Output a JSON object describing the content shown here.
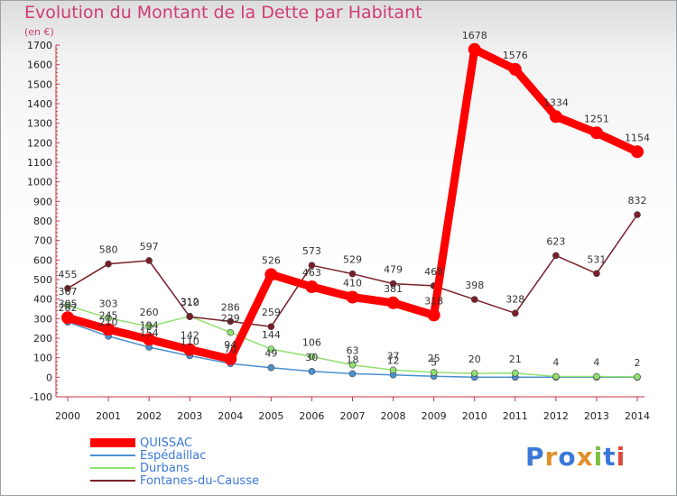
{
  "title": "Evolution du Montant de la Dette par Habitant",
  "unit": "(en €)",
  "logo": "Proxiti",
  "chart_data": {
    "type": "line",
    "title": "Evolution du Montant de la Dette par Habitant",
    "ylabel": "(en €)",
    "xlabel": "",
    "ylim": [
      -100,
      1700
    ],
    "yticks": [
      -100,
      0,
      100,
      200,
      300,
      400,
      500,
      600,
      700,
      800,
      900,
      1000,
      1100,
      1200,
      1300,
      1400,
      1500,
      1600,
      1700
    ],
    "x": [
      "2000",
      "2001",
      "2002",
      "2003",
      "2004",
      "2005",
      "2006",
      "2007",
      "2008",
      "2009",
      "2010",
      "2011",
      "2012",
      "2013",
      "2014"
    ],
    "series": [
      {
        "name": "QUISSAC",
        "color": "#ff0000",
        "values": [
          305,
          245,
          194,
          142,
          94,
          526,
          463,
          410,
          381,
          318,
          1678,
          1576,
          1334,
          1251,
          1154
        ]
      },
      {
        "name": "Espédaillac",
        "color": "#4a90d0",
        "values": [
          282,
          210,
          154,
          110,
          70,
          49,
          30,
          18,
          12,
          5,
          0,
          0,
          0,
          0,
          0
        ]
      },
      {
        "name": "Durbans",
        "color": "#90e070",
        "values": [
          367,
          303,
          260,
          312,
          229,
          144,
          106,
          63,
          37,
          25,
          20,
          21,
          4,
          4,
          2
        ]
      },
      {
        "name": "Fontanes-du-Causse",
        "color": "#7a1f2a",
        "values": [
          455,
          580,
          597,
          310,
          286,
          259,
          573,
          529,
          479,
          468,
          398,
          328,
          623,
          531,
          832
        ]
      }
    ],
    "data_labels": [
      [
        "305",
        "245",
        "194",
        "142",
        "94",
        "526",
        "463",
        "410",
        "381",
        "318",
        "1678",
        "1576",
        "1334",
        "1251",
        "1154"
      ],
      [
        "282",
        "210",
        "154",
        "110",
        "70",
        "49",
        "30",
        "18",
        "12",
        "5",
        "",
        "",
        "",
        "",
        ""
      ],
      [
        "367",
        "303",
        "260",
        "312",
        "229",
        "144",
        "106",
        "63",
        "37",
        "25",
        "20",
        "21",
        "4",
        "4",
        "2"
      ],
      [
        "455",
        "580",
        "597",
        "310",
        "286",
        "259",
        "573",
        "529",
        "479",
        "468",
        "398",
        "328",
        "623",
        "531",
        "832"
      ]
    ],
    "legend_position": "bottom-left",
    "grid": false
  }
}
